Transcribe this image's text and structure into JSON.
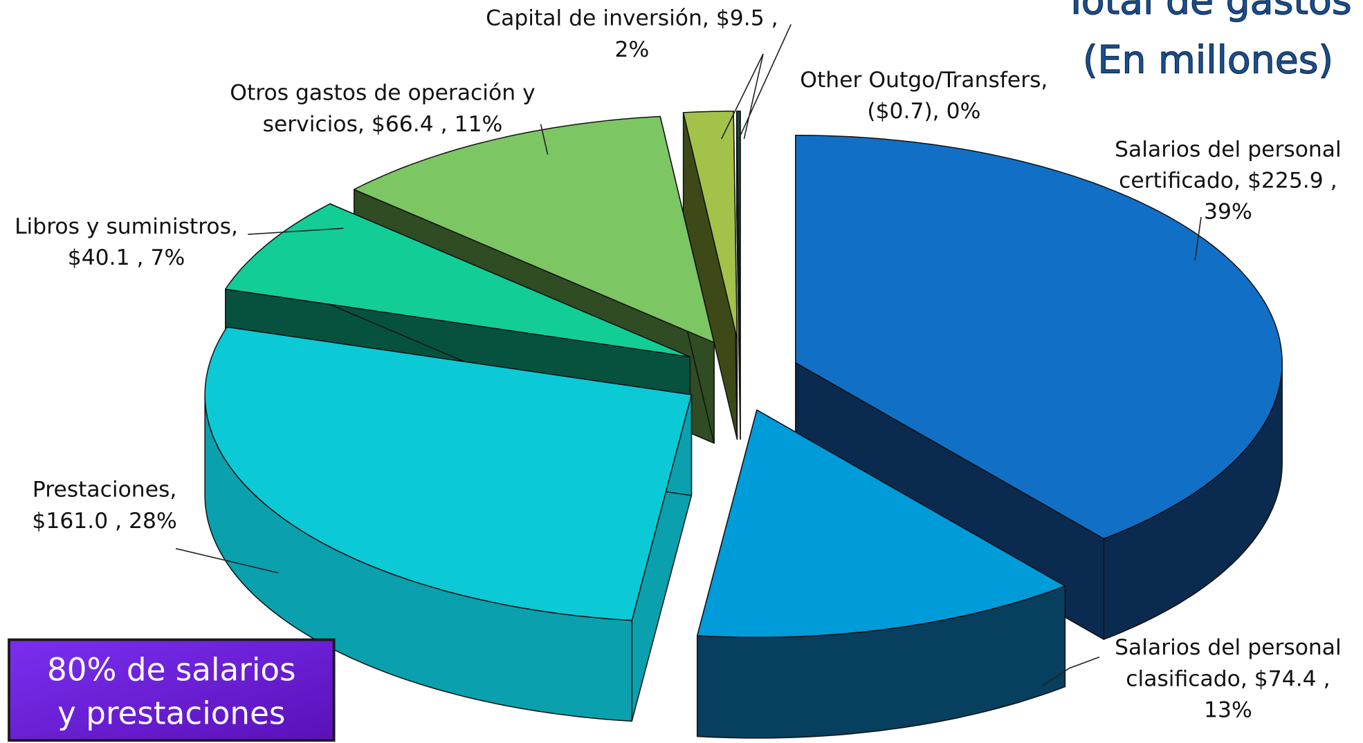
{
  "chart_data": {
    "type": "pie3d",
    "title": [
      "Total de gastos",
      "(En millones)"
    ],
    "categories": [
      "Salarios del personal certificado",
      "Salarios del personal clasificado",
      "Prestaciones",
      "Libros y suministros",
      "Otros gastos de operación y servicios",
      "Capital de inversión",
      "Other Outgo/Transfers"
    ],
    "values": [
      225.9,
      74.4,
      161.0,
      40.1,
      66.4,
      9.5,
      -0.7
    ],
    "value_labels": [
      [
        "Salarios del personal",
        "certificado, $225.9 ,",
        "39%"
      ],
      [
        "Salarios del personal",
        "clasificado, $74.4 ,",
        "13%"
      ],
      [
        "Prestaciones,",
        "$161.0 , 28%"
      ],
      [
        "Libros y suministros,",
        "$40.1 , 7%"
      ],
      [
        "Otros gastos de operación y",
        "servicios, $66.4 , 11%"
      ],
      [
        "Capital de inversión, $9.5 ,",
        "2%"
      ],
      [
        "Other Outgo/Transfers,",
        "($0.7), 0%"
      ]
    ],
    "colors": [
      "#1170c6",
      "#009bd9",
      "#0bcad6",
      "#13cd97",
      "#7cc664",
      "#a4c24a",
      "#1c4a3a"
    ],
    "side_colors": [
      "#0b2a4f",
      "#073f5e",
      "#0aa0ad",
      "#06523f",
      "#2f4c23",
      "#3d4a18",
      "#0f2a20"
    ],
    "annotation": [
      "80% de salarios",
      "y prestaciones"
    ]
  }
}
